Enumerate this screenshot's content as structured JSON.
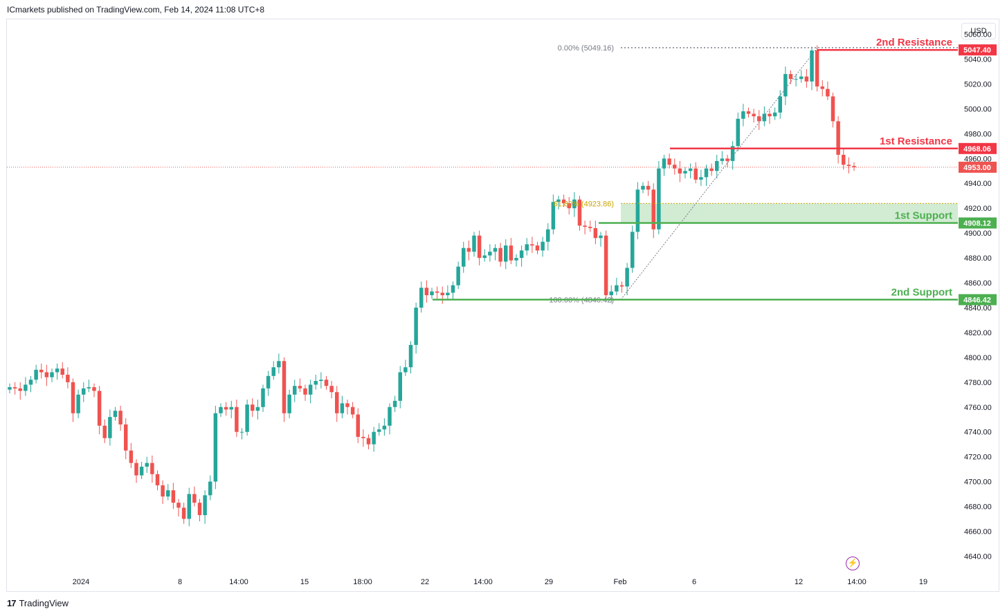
{
  "header": {
    "published": "ICmarkets published on TradingView.com, Feb 14, 2024 11:08 UTC+8"
  },
  "currency_button": "USD",
  "footer": {
    "brand": "TradingView"
  },
  "icons": {
    "alert": "lightning-icon",
    "logo": "tradingview-logo-icon"
  },
  "colors": {
    "up": "#26a69a",
    "down": "#ef5350",
    "resistance": "#f23645",
    "support": "#4caf50",
    "fib": "#787b86",
    "fib_gold": "#c9a400"
  },
  "chart_data": {
    "type": "candlestick",
    "title": "",
    "xlabel": "",
    "ylabel": "",
    "ylim": [
      4628,
      5072
    ],
    "y_ticks": [
      "5060.00",
      "5040.00",
      "5020.00",
      "5000.00",
      "4980.00",
      "4960.00",
      "4940.00",
      "4920.00",
      "4900.00",
      "4880.00",
      "4860.00",
      "4840.00",
      "4820.00",
      "4800.00",
      "4780.00",
      "4760.00",
      "4740.00",
      "4720.00",
      "4700.00",
      "4680.00",
      "4660.00",
      "4640.00"
    ],
    "x_ticks": [
      "2024",
      "8",
      "14:00",
      "15",
      "18:00",
      "22",
      "14:00",
      "29",
      "Feb",
      "6",
      "12",
      "14:00",
      "19"
    ],
    "levels": [
      {
        "name": "2nd Resistance",
        "price": "5047.40",
        "value": 5047.4,
        "kind": "resistance"
      },
      {
        "name": "1st Resistance",
        "price": "4968.06",
        "value": 4968.06,
        "kind": "resistance"
      },
      {
        "name": "1st Support",
        "price": "4908.12",
        "value": 4908.12,
        "kind": "support"
      },
      {
        "name": "2nd Support",
        "price": "4846.42",
        "value": 4846.42,
        "kind": "support"
      }
    ],
    "current_price": {
      "label": "4953.00",
      "value": 4953.0
    },
    "fibonacci": [
      {
        "label": "0.00% (5049.16)",
        "value": 5049.16
      },
      {
        "label": "61.80% (4923.86)",
        "value": 4923.86
      },
      {
        "label": "100.00% (4846.42)",
        "value": 4846.42
      }
    ],
    "support_zone": {
      "from": 4908.12,
      "to": 4923.86
    },
    "closes": [
      4776,
      4775,
      4773,
      4778,
      4782,
      4790,
      4788,
      4784,
      4788,
      4791,
      4786,
      4780,
      4755,
      4770,
      4775,
      4776,
      4773,
      4745,
      4735,
      4752,
      4757,
      4746,
      4725,
      4715,
      4705,
      4712,
      4715,
      4706,
      4697,
      4688,
      4693,
      4683,
      4679,
      4670,
      4690,
      4683,
      4673,
      4689,
      4700,
      4755,
      4760,
      4758,
      4760,
      4740,
      4740,
      4762,
      4757,
      4760,
      4775,
      4785,
      4792,
      4797,
      4755,
      4770,
      4777,
      4775,
      4770,
      4778,
      4781,
      4782,
      4777,
      4772,
      4755,
      4763,
      4760,
      4754,
      4736,
      4735,
      4730,
      4740,
      4742,
      4745,
      4760,
      4765,
      4788,
      4792,
      4810,
      4840,
      4856,
      4850,
      4853,
      4852,
      4850,
      4852,
      4858,
      4873,
      4888,
      4885,
      4898,
      4880,
      4882,
      4885,
      4888,
      4877,
      4890,
      4878,
      4880,
      4886,
      4891,
      4890,
      4886,
      4893,
      4903,
      4925,
      4927,
      4924,
      4920,
      4927,
      4906,
      4905,
      4904,
      4896,
      4898,
      4850,
      4853,
      4858,
      4857,
      4872,
      4901,
      4935,
      4938,
      4935,
      4903,
      4952,
      4960,
      4955,
      4952,
      4948,
      4950,
      4952,
      4943,
      4945,
      4952,
      4950,
      4958,
      4960,
      4958,
      4970,
      4992,
      4998,
      4996,
      4994,
      4990,
      4996,
      4994,
      4997,
      5010,
      5028,
      5024,
      5024,
      5026,
      5022,
      5047,
      5018,
      5016,
      5010,
      4990,
      4963,
      4955,
      4954,
      4953
    ],
    "timeline_note": "",
    "y_range": [
      4628,
      5072
    ]
  }
}
